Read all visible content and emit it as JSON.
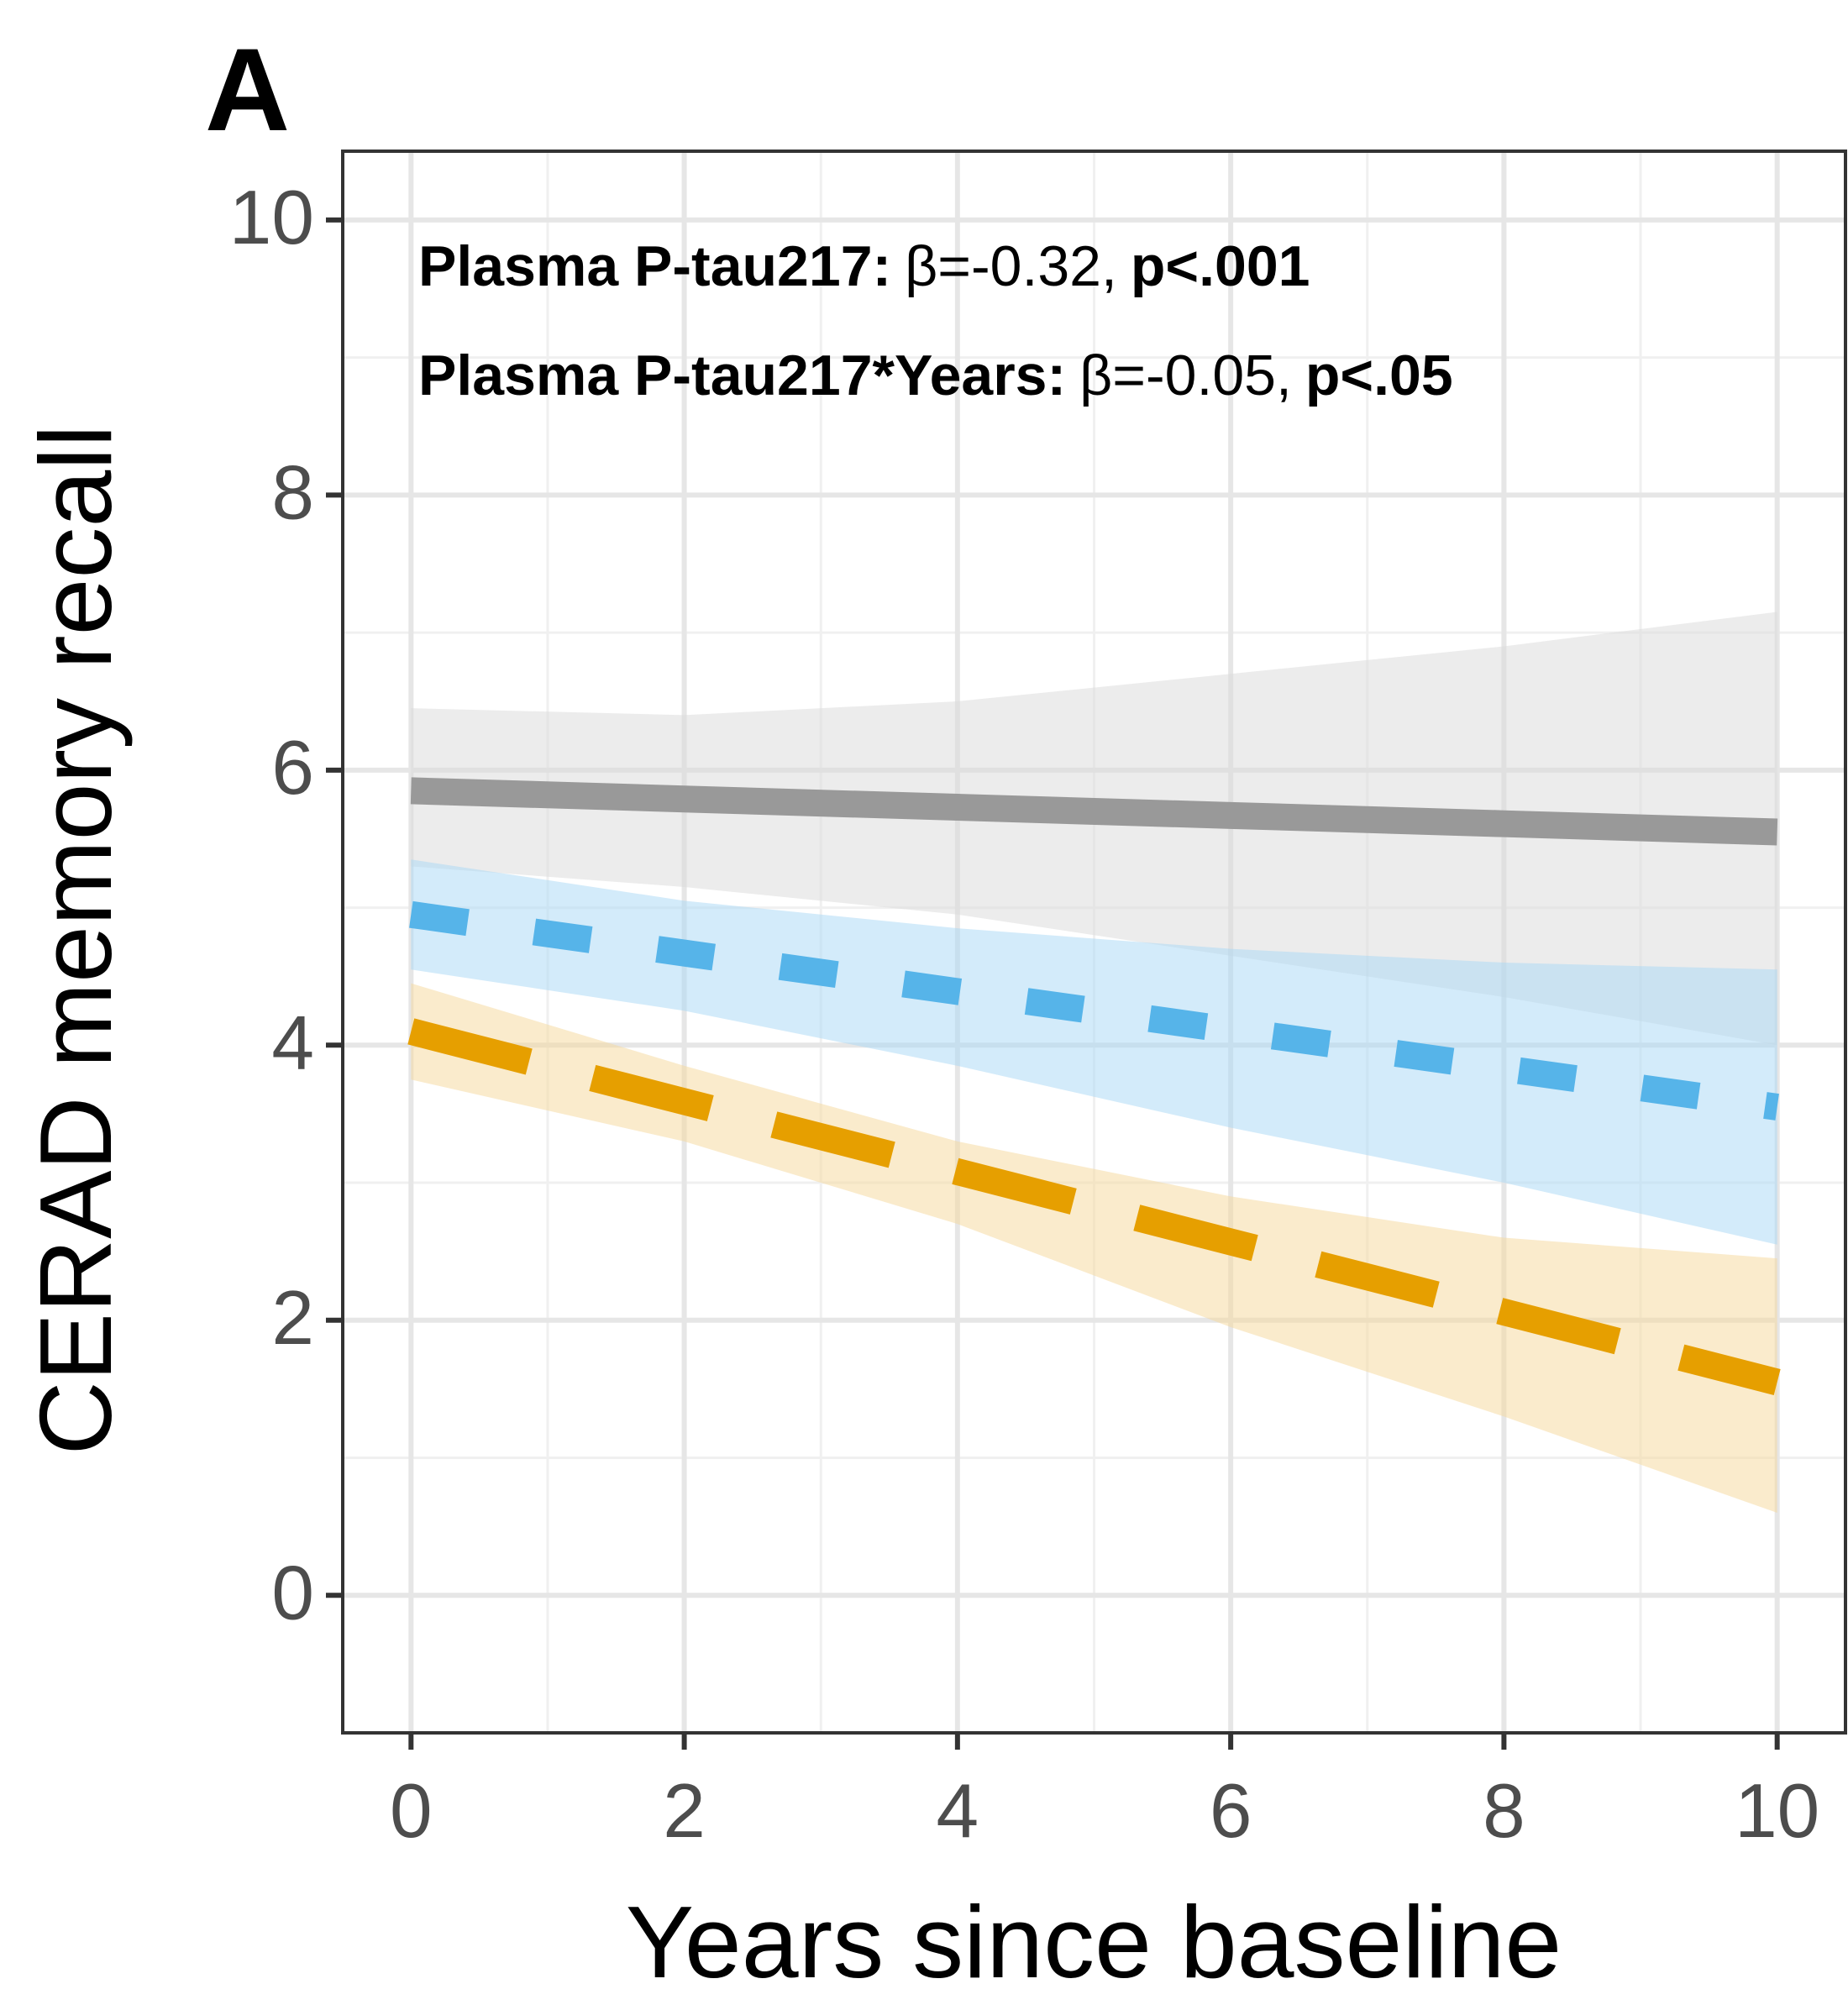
{
  "chart_data": {
    "type": "line",
    "panel_label": "A",
    "xlabel": "Years since baseline",
    "ylabel": "CERAD memory recall",
    "annotations": [
      {
        "label": "Plasma P-tau217:",
        "stat": "β=-0.32,",
        "p": "p<.001"
      },
      {
        "label": "Plasma P-tau217*Years:",
        "stat": "β=-0.05,",
        "p": "p<.05"
      }
    ],
    "x": [
      0,
      2,
      4,
      6,
      8,
      10
    ],
    "series": [
      {
        "color": "#999999",
        "ribbon_color": "#d9d9d9",
        "dash": "solid",
        "values": [
          5.85,
          5.79,
          5.73,
          5.67,
          5.61,
          5.55
        ],
        "lower": [
          5.3,
          5.15,
          4.95,
          4.65,
          4.35,
          4.0
        ],
        "upper": [
          6.45,
          6.4,
          6.5,
          6.7,
          6.9,
          7.15
        ]
      },
      {
        "color": "#56b4e9",
        "ribbon_color": "#a8d8f5",
        "dash": "short",
        "values": [
          4.95,
          4.67,
          4.39,
          4.11,
          3.83,
          3.55
        ],
        "lower": [
          4.55,
          4.25,
          3.85,
          3.4,
          3.0,
          2.55
        ],
        "upper": [
          5.35,
          5.05,
          4.85,
          4.7,
          4.6,
          4.55
        ]
      },
      {
        "color": "#e69f00",
        "ribbon_color": "#f5d79a",
        "dash": "long",
        "values": [
          4.1,
          3.59,
          3.08,
          2.57,
          2.06,
          1.55
        ],
        "lower": [
          3.75,
          3.3,
          2.7,
          1.95,
          1.3,
          0.6
        ],
        "upper": [
          4.45,
          3.85,
          3.3,
          2.9,
          2.6,
          2.45
        ]
      }
    ],
    "xlim": [
      -0.5,
      10.5
    ],
    "ylim": [
      -1,
      10.5
    ],
    "xticks": [
      0,
      2,
      4,
      6,
      8,
      10
    ],
    "yticks": [
      0,
      2,
      4,
      6,
      8,
      10
    ],
    "xminor": [
      1,
      3,
      5,
      7,
      9
    ],
    "yminor": [
      1,
      3,
      5,
      7,
      9
    ],
    "grid": true
  }
}
